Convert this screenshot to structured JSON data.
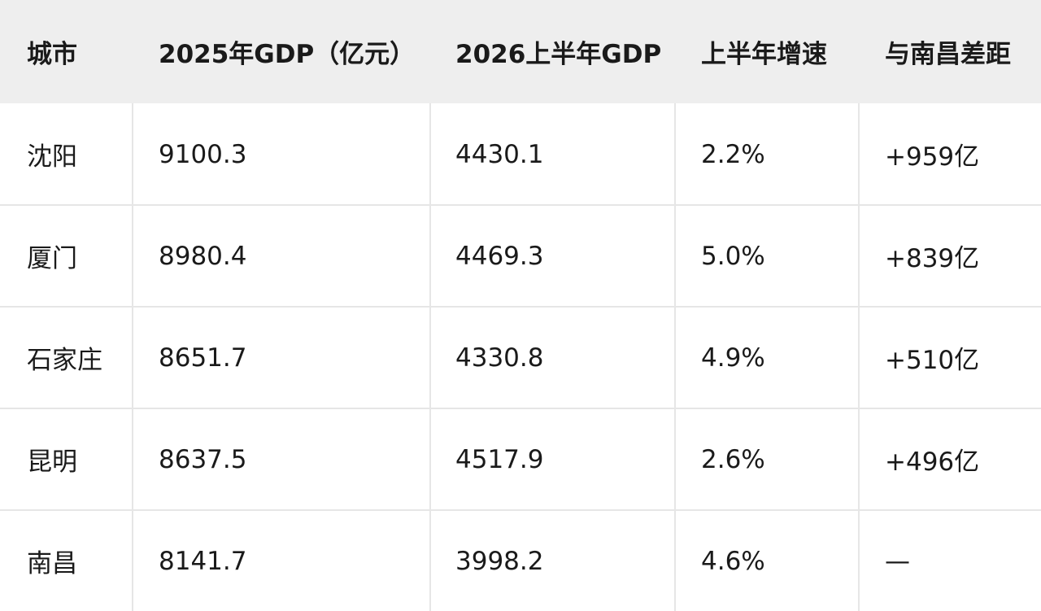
{
  "table": {
    "header": [
      "城市",
      "2025年GDP（亿元）",
      "2026上半年GDP",
      "上半年增速",
      "与南昌差距"
    ],
    "rows": [
      [
        "沈阳",
        "9100.3",
        "4430.1",
        "2.2%",
        "+959亿"
      ],
      [
        "厦门",
        "8980.4",
        "4469.3",
        "5.0%",
        "+839亿"
      ],
      [
        "石家庄",
        "8651.7",
        "4330.8",
        "4.9%",
        "+510亿"
      ],
      [
        "昆明",
        "8637.5",
        "4517.9",
        "2.6%",
        "+496亿"
      ],
      [
        "南昌",
        "8141.7",
        "3998.2",
        "4.6%",
        "—"
      ]
    ]
  }
}
